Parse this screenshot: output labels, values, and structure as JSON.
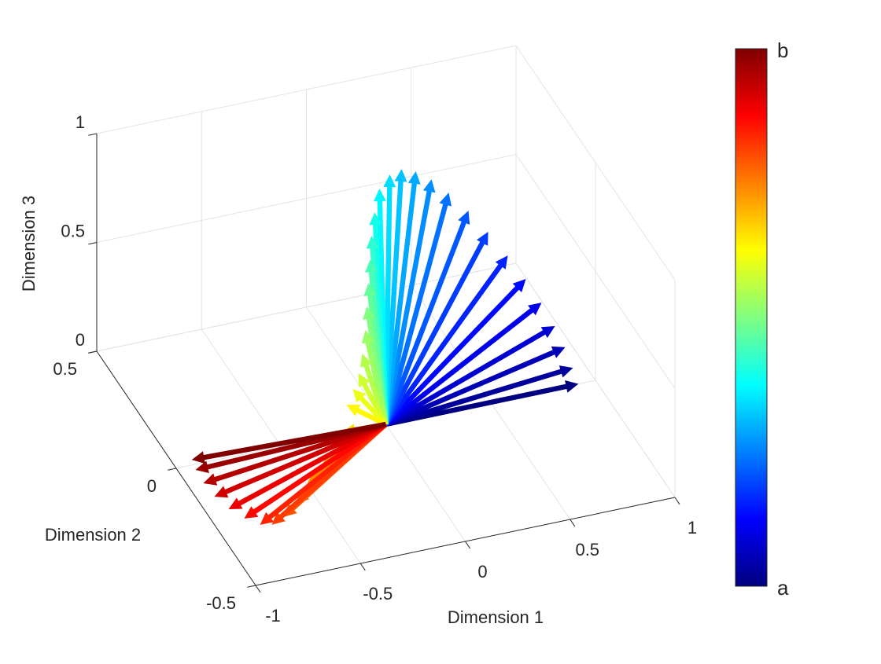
{
  "chart_data": {
    "type": "quiver3",
    "xlabel": "Dimension 1",
    "ylabel": "Dimension 2",
    "zlabel": "Dimension 3",
    "xlim": [
      -1,
      1
    ],
    "ylim": [
      -0.5,
      0.5
    ],
    "zlim": [
      0,
      1
    ],
    "xticks": [
      -1,
      -0.5,
      0,
      0.5,
      1
    ],
    "yticks": [
      -0.5,
      0,
      0.5
    ],
    "zticks": [
      0,
      0.5,
      1
    ],
    "grid": true,
    "colormap": "jet",
    "colorbar_labels": [
      "a",
      "b"
    ],
    "u": [
      0.919,
      0.893,
      0.856,
      0.807,
      0.743,
      0.668,
      0.582,
      0.488,
      0.394,
      0.3,
      0.218,
      0.143,
      0.075,
      0.019,
      -0.03,
      -0.053,
      -0.068,
      -0.075,
      -0.083,
      -0.09,
      -0.098,
      -0.113,
      -0.131,
      -0.158,
      -0.188,
      -0.203,
      -0.28,
      -0.374,
      -0.495,
      -0.6,
      -0.69,
      -0.761,
      -0.81,
      -0.858,
      -0.897,
      -0.921,
      -0.929,
      -0.924,
      -0.911
    ],
    "v": [
      0,
      0,
      0,
      0,
      0,
      0,
      0,
      0,
      0,
      0,
      0,
      0,
      0,
      0,
      0,
      0,
      0,
      0,
      0,
      0,
      0,
      0,
      0,
      0,
      0,
      0.005,
      -0.048,
      -0.097,
      -0.159,
      -0.223,
      -0.266,
      -0.286,
      -0.277,
      -0.241,
      -0.194,
      -0.136,
      -0.077,
      -0.021,
      0.02
    ],
    "w": [
      0,
      0.079,
      0.181,
      0.288,
      0.409,
      0.533,
      0.658,
      0.786,
      0.902,
      1.004,
      1.082,
      1.134,
      1.158,
      1.144,
      1.089,
      0.985,
      0.88,
      0.773,
      0.666,
      0.56,
      0.453,
      0.348,
      0.261,
      0.194,
      0.128,
      0,
      0,
      0,
      0,
      0,
      0,
      0,
      0,
      0,
      0,
      0,
      0,
      0,
      0
    ]
  }
}
